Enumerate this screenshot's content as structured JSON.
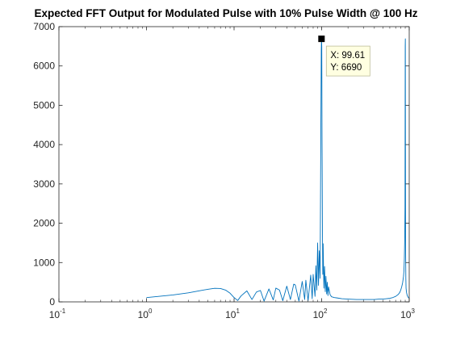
{
  "chart_data": {
    "type": "line",
    "title": "Expected FFT Output for Modulated Pulse with 10% Pulse Width @ 100 Hz",
    "xlabel": "",
    "ylabel": "",
    "xscale": "log",
    "xlim": [
      0.1,
      1000
    ],
    "ylim": [
      0,
      7000
    ],
    "grid": false,
    "legend": "none",
    "x_ticks": [
      {
        "base": "10",
        "exp": "-1",
        "value": 0.1
      },
      {
        "base": "10",
        "exp": "0",
        "value": 1
      },
      {
        "base": "10",
        "exp": "1",
        "value": 10
      },
      {
        "base": "10",
        "exp": "2",
        "value": 100
      },
      {
        "base": "10",
        "exp": "3",
        "value": 1000
      }
    ],
    "y_ticks": [
      {
        "label": "0",
        "value": 0
      },
      {
        "label": "1000",
        "value": 1000
      },
      {
        "label": "2000",
        "value": 2000
      },
      {
        "label": "3000",
        "value": 3000
      },
      {
        "label": "4000",
        "value": 4000
      },
      {
        "label": "5000",
        "value": 5000
      },
      {
        "label": "6000",
        "value": 6000
      },
      {
        "label": "7000",
        "value": 7000
      }
    ],
    "series": [
      {
        "color": "#0072BD",
        "x": [
          1,
          2,
          3,
          4,
          5,
          6,
          7,
          8,
          9,
          10,
          11,
          12,
          14,
          16,
          18,
          20,
          22,
          25,
          28,
          30,
          33,
          36,
          40,
          44,
          48,
          50,
          55,
          60,
          64,
          66,
          70,
          75,
          78,
          80,
          84,
          86,
          88,
          90,
          92,
          94,
          96,
          97,
          98,
          99,
          99.61,
          100.3,
          101,
          102,
          103,
          104,
          106,
          108,
          110,
          112,
          114,
          116,
          118,
          120,
          125,
          130,
          140,
          150,
          170,
          200,
          250,
          300,
          350,
          400,
          450,
          500,
          550,
          600,
          650,
          700,
          750,
          780,
          800,
          820,
          840,
          860,
          870,
          880,
          890,
          895,
          900,
          903,
          905,
          908,
          910,
          915,
          920,
          930,
          940,
          950,
          960,
          970,
          980,
          990,
          1000
        ],
        "y": [
          110,
          175,
          230,
          280,
          320,
          345,
          340,
          300,
          220,
          110,
          35,
          150,
          280,
          60,
          250,
          290,
          20,
          330,
          50,
          350,
          300,
          30,
          400,
          60,
          450,
          430,
          20,
          520,
          60,
          550,
          30,
          680,
          80,
          700,
          140,
          920,
          300,
          1500,
          420,
          1300,
          600,
          2500,
          4500,
          6400,
          6690,
          6500,
          4200,
          2000,
          700,
          1480,
          350,
          900,
          260,
          650,
          200,
          500,
          160,
          380,
          180,
          130,
          110,
          100,
          80,
          70,
          60,
          60,
          60,
          60,
          70,
          70,
          80,
          90,
          110,
          140,
          190,
          240,
          300,
          380,
          480,
          640,
          780,
          1100,
          1700,
          2400,
          6500,
          6690,
          4500,
          2200,
          1200,
          600,
          350,
          250,
          200,
          160,
          140,
          120,
          110,
          100,
          90
        ]
      }
    ],
    "datatip": {
      "x_label": "X: 99.61",
      "y_label": "Y: 6690",
      "x": 99.61,
      "y": 6690
    }
  }
}
